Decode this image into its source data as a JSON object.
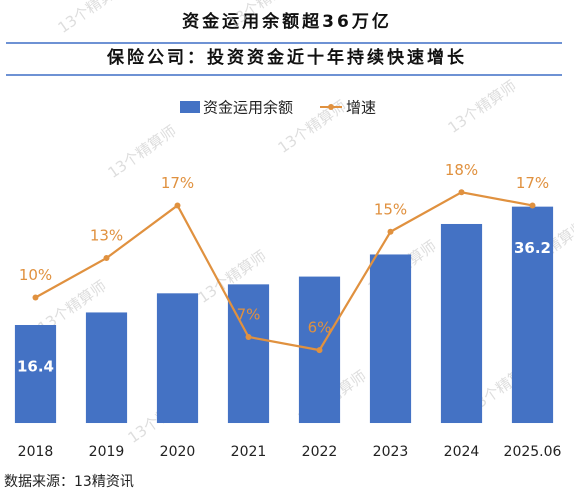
{
  "chart_data": {
    "type": "bar_line",
    "title": "资金运用余额超36万亿",
    "subtitle": "保险公司：投资资金近十年持续快速增长",
    "categories": [
      "2018",
      "2019",
      "2020",
      "2021",
      "2022",
      "2023",
      "2024",
      "2025.06"
    ],
    "series": [
      {
        "name": "资金运用余额",
        "color": "#4472c4",
        "values": [
          16.4,
          18.5,
          21.7,
          23.2,
          24.5,
          28.2,
          33.3,
          36.2
        ],
        "value_labels": [
          "16.4",
          null,
          null,
          null,
          null,
          null,
          null,
          "36.2"
        ]
      },
      {
        "name": "增速",
        "color": "#e0913f",
        "axis": "y2",
        "values": [
          10,
          13,
          17,
          7,
          6,
          15,
          18,
          17
        ],
        "value_labels": [
          "10%",
          "13%",
          "17%",
          "7%",
          "6%",
          "15%",
          "18%",
          "17%"
        ]
      }
    ],
    "ylim": [
      -1,
      43
    ],
    "y2lim": [
      0,
      20
    ],
    "watermark": "13个精算师",
    "source": "数据来源：13精资讯"
  }
}
